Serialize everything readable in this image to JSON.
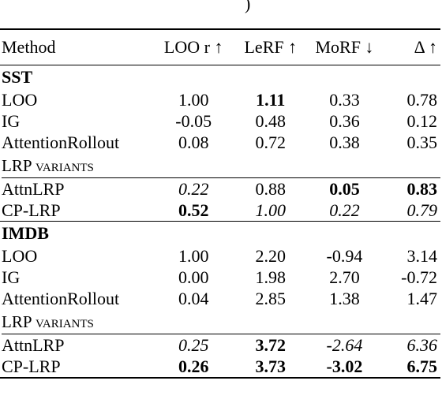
{
  "fragment": ")",
  "header": [
    "Method",
    "LOO r ↑",
    "LeRF ↑",
    "MoRF ↓",
    "Δ ↑"
  ],
  "sections": [
    {
      "name": "SST",
      "rows": [
        {
          "method": "LOO",
          "values": [
            "1.00",
            "1.11",
            "0.33",
            "0.78"
          ],
          "styles": [
            "",
            "b",
            "",
            ""
          ]
        },
        {
          "method": "IG",
          "values": [
            "-0.05",
            "0.48",
            "0.36",
            "0.12"
          ],
          "styles": [
            "",
            "",
            "",
            ""
          ]
        },
        {
          "method": "AttentionRollout",
          "values": [
            "0.08",
            "0.72",
            "0.38",
            "0.35"
          ],
          "styles": [
            "",
            "",
            "",
            ""
          ]
        }
      ],
      "variants_label": "LRP variants",
      "variant_rows": [
        {
          "method": "AttnLRP",
          "values": [
            "0.22",
            "0.88",
            "0.05",
            "0.83"
          ],
          "styles": [
            "i",
            "",
            "b",
            "b"
          ]
        },
        {
          "method": "CP-LRP",
          "values": [
            "0.52",
            "1.00",
            "0.22",
            "0.79"
          ],
          "styles": [
            "b",
            "i",
            "i",
            "i"
          ]
        }
      ]
    },
    {
      "name": "IMDB",
      "rows": [
        {
          "method": "LOO",
          "values": [
            "1.00",
            "2.20",
            "-0.94",
            "3.14"
          ],
          "styles": [
            "",
            "",
            "",
            ""
          ]
        },
        {
          "method": "IG",
          "values": [
            "0.00",
            "1.98",
            "2.70",
            "-0.72"
          ],
          "styles": [
            "",
            "",
            "",
            ""
          ]
        },
        {
          "method": "AttentionRollout",
          "values": [
            "0.04",
            "2.85",
            "1.38",
            "1.47"
          ],
          "styles": [
            "",
            "",
            "",
            ""
          ]
        }
      ],
      "variants_label": "LRP variants",
      "variant_rows": [
        {
          "method": "AttnLRP",
          "values": [
            "0.25",
            "3.72",
            "-2.64",
            "6.36"
          ],
          "styles": [
            "i",
            "b",
            "i",
            "i"
          ]
        },
        {
          "method": "CP-LRP",
          "values": [
            "0.26",
            "3.73",
            "-3.02",
            "6.75"
          ],
          "styles": [
            "b",
            "b",
            "b",
            "b"
          ]
        }
      ]
    }
  ]
}
